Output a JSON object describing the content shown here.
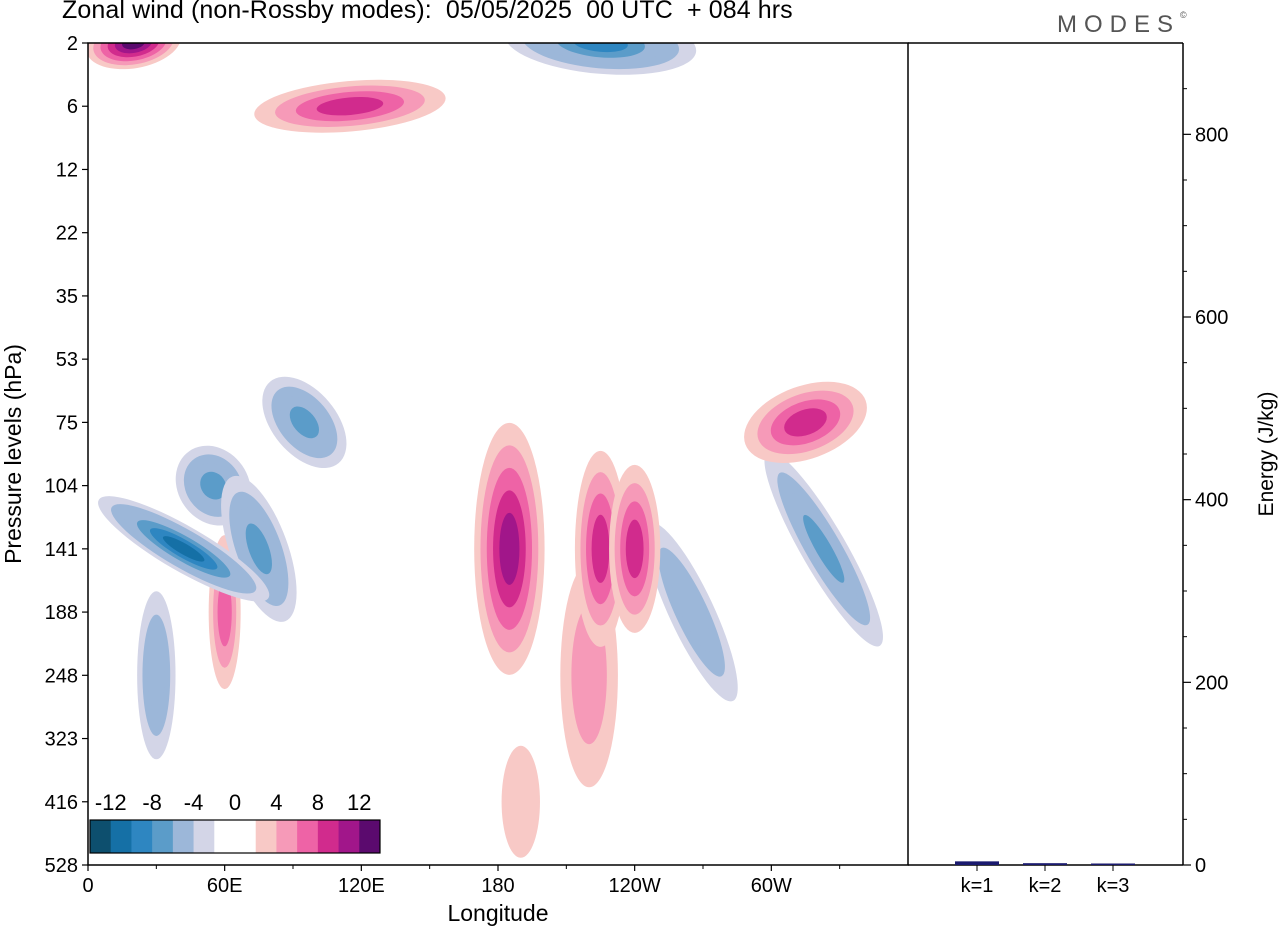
{
  "title": "Zonal wind (non-Rossby modes):  05/05/2025  00 UTC  + 084 hrs",
  "logo": "MODES",
  "logo_mark": "©",
  "colors": {
    "negative": [
      "#0d4f6e",
      "#1570a6",
      "#2e86c1",
      "#5b9cc9",
      "#9cb7d9",
      "#d3d5e7"
    ],
    "neutral": "#ffffff",
    "positive": [
      "#f8c9c6",
      "#f69ab8",
      "#ee63a6",
      "#d12b8d",
      "#a1168a",
      "#5b0a6e"
    ],
    "bar": "#1a1a6e"
  },
  "chart_data": [
    {
      "type": "heatmap",
      "xlabel": "Longitude",
      "ylabel": "Pressure levels (hPa)",
      "x_ticks": [
        "0",
        "60E",
        "120E",
        "180",
        "120W",
        "60W"
      ],
      "y_ticks": [
        "2",
        "6",
        "12",
        "22",
        "35",
        "53",
        "75",
        "104",
        "141",
        "188",
        "248",
        "323",
        "416",
        "528"
      ],
      "colorbar": {
        "labels": [
          "-12",
          "-8",
          "-4",
          "0",
          "4",
          "8",
          "12"
        ],
        "levels": [
          -14,
          -12,
          -10,
          -8,
          -6,
          -4,
          -2,
          2,
          4,
          6,
          8,
          10,
          12,
          14
        ]
      },
      "features": [
        {
          "lon": 42,
          "level": 141,
          "value": -12
        },
        {
          "lon": 55,
          "level": 104,
          "value": -8
        },
        {
          "lon": 75,
          "level": 141,
          "value": -8
        },
        {
          "lon": 95,
          "level": 75,
          "value": -8
        },
        {
          "lon": 30,
          "level": 248,
          "value": -6
        },
        {
          "lon": 225,
          "level": 2,
          "value": -10
        },
        {
          "lon": 265,
          "level": 188,
          "value": -6
        },
        {
          "lon": 323,
          "level": 141,
          "value": -8
        },
        {
          "lon": 185,
          "level": 141,
          "value": 10
        },
        {
          "lon": 225,
          "level": 141,
          "value": 8
        },
        {
          "lon": 240,
          "level": 141,
          "value": 8
        },
        {
          "lon": 315,
          "level": 75,
          "value": 8
        },
        {
          "lon": 20,
          "level": 2,
          "value": 12
        },
        {
          "lon": 115,
          "level": 6,
          "value": 8
        },
        {
          "lon": 60,
          "level": 188,
          "value": 6
        },
        {
          "lon": 220,
          "level": 248,
          "value": 4
        },
        {
          "lon": 190,
          "level": 416,
          "value": 2
        }
      ]
    },
    {
      "type": "bar",
      "categories": [
        "k=1",
        "k=2",
        "k=3"
      ],
      "values": [
        4,
        2,
        1
      ],
      "ylabel": "Energy (J/kg)",
      "y_ticks": [
        "0",
        "200",
        "400",
        "600",
        "800"
      ],
      "ylim": [
        0,
        900
      ]
    }
  ]
}
